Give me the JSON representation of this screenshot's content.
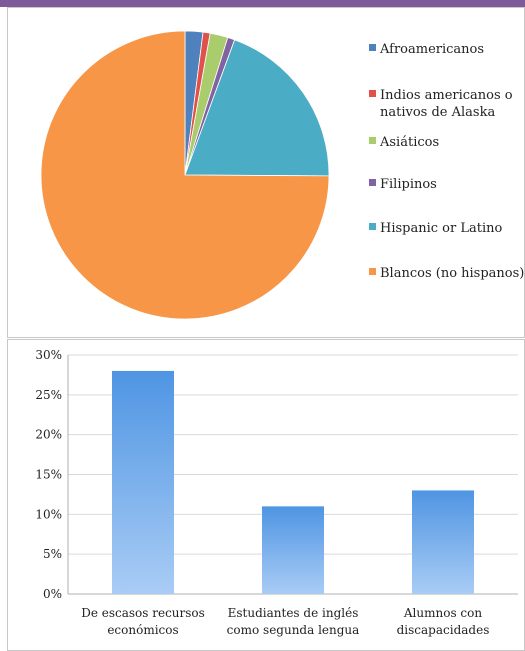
{
  "colors": {
    "header_bar": "#7e5a9b",
    "panel_border": "#c8c8c8",
    "gridline": "#d9d9d9"
  },
  "chart_data": [
    {
      "type": "pie",
      "labels": [
        "Afroamericanos",
        "Indios americanos o nativos de Alaska",
        "Asiáticos",
        "Filipinos",
        "Hispanic or Latino",
        "Blancos (no hispanos)"
      ],
      "legend_lines": [
        [
          "Afroamericanos"
        ],
        [
          "Indios americanos o",
          "nativos de Alaska"
        ],
        [
          "Asiáticos"
        ],
        [
          "Filipinos"
        ],
        [
          "Hispanic or Latino"
        ],
        [
          "Blancos (no hispanos)"
        ]
      ],
      "values": [
        2.0,
        0.8,
        2.0,
        0.8,
        19.5,
        74.9
      ],
      "colors": [
        "#4f81bd",
        "#e0514b",
        "#a9cd6c",
        "#8064a2",
        "#4bacc6",
        "#f79646"
      ],
      "start_angle_deg": 0,
      "direction": "clockwise",
      "legend_position": "right"
    },
    {
      "type": "bar",
      "categories": [
        "De escasos recursos económicos",
        "Estudiantes de inglés como segunda lengua",
        "Alumnos con discapacidades"
      ],
      "category_lines": [
        [
          "De escasos recursos",
          "económicos"
        ],
        [
          "Estudiantes de inglés",
          "como segunda lengua"
        ],
        [
          "Alumnos con",
          "discapacidades"
        ]
      ],
      "values": [
        28,
        11,
        13
      ],
      "ylim": [
        0,
        30
      ],
      "yticks": [
        "0%",
        "5%",
        "10%",
        "15%",
        "20%",
        "25%",
        "30%"
      ],
      "ytick_values": [
        0,
        5,
        10,
        15,
        20,
        25,
        30
      ],
      "grid": true,
      "bar_color_top": "#4f95e3",
      "bar_color_bottom": "#a9ccf5"
    }
  ]
}
